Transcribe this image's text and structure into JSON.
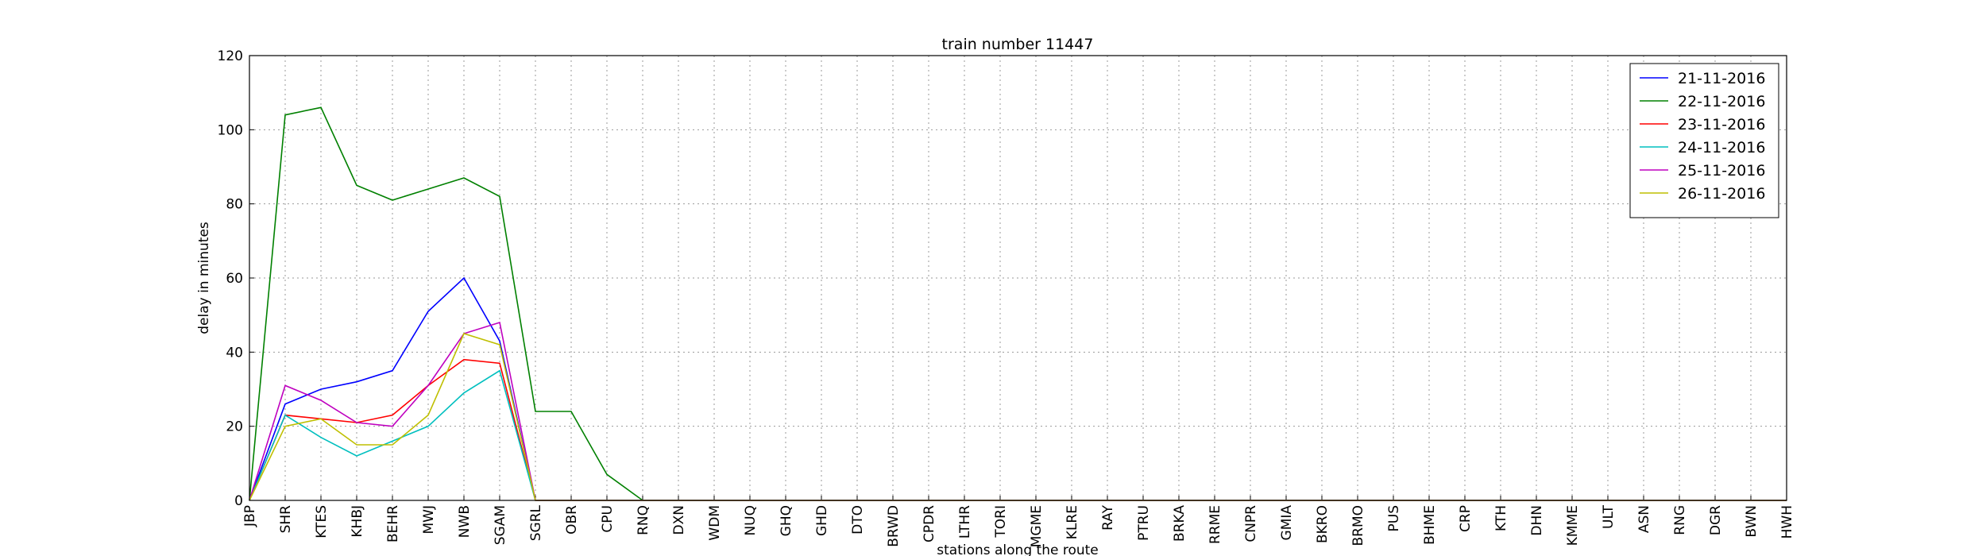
{
  "chart_data": {
    "type": "line",
    "title": "train number 11447",
    "x_label": "stations along the route",
    "y_label": "delay in minutes",
    "categories": [
      "JBP",
      "SHR",
      "KTES",
      "KHBJ",
      "BEHR",
      "MWJ",
      "NWB",
      "SGAM",
      "SGRL",
      "OBR",
      "CPU",
      "RNQ",
      "DXN",
      "WDM",
      "NUQ",
      "GHQ",
      "GHD",
      "DTO",
      "BRWD",
      "CPDR",
      "LTHR",
      "TORI",
      "MGME",
      "KLRE",
      "RAY",
      "PTRU",
      "BRKA",
      "RRME",
      "CNPR",
      "GMIA",
      "BKRO",
      "BRMO",
      "PUS",
      "BHME",
      "CRP",
      "KTH",
      "DHN",
      "KMME",
      "ULT",
      "ASN",
      "RNG",
      "DGR",
      "BWN",
      "HWH"
    ],
    "series": [
      {
        "name": "21-11-2016",
        "color": "#0000ff",
        "values": [
          0,
          26,
          30,
          32,
          35,
          51,
          60,
          43,
          0,
          0,
          0,
          0,
          0,
          0,
          0,
          0,
          0,
          0,
          0,
          0,
          0,
          0,
          0,
          0,
          0,
          0,
          0,
          0,
          0,
          0,
          0,
          0,
          0,
          0,
          0,
          0,
          0,
          0,
          0,
          0,
          0,
          0,
          0,
          0
        ]
      },
      {
        "name": "22-11-2016",
        "color": "#008000",
        "values": [
          0,
          104,
          106,
          85,
          81,
          84,
          87,
          82,
          24,
          24,
          7,
          0,
          0,
          0,
          0,
          0,
          0,
          0,
          0,
          0,
          0,
          0,
          0,
          0,
          0,
          0,
          0,
          0,
          0,
          0,
          0,
          0,
          0,
          0,
          0,
          0,
          0,
          0,
          0,
          0,
          0,
          0,
          0,
          0
        ]
      },
      {
        "name": "23-11-2016",
        "color": "#ff0000",
        "values": [
          0,
          23,
          22,
          21,
          23,
          31,
          38,
          37,
          0,
          0,
          0,
          0,
          0,
          0,
          0,
          0,
          0,
          0,
          0,
          0,
          0,
          0,
          0,
          0,
          0,
          0,
          0,
          0,
          0,
          0,
          0,
          0,
          0,
          0,
          0,
          0,
          0,
          0,
          0,
          0,
          0,
          0,
          0,
          0
        ]
      },
      {
        "name": "24-11-2016",
        "color": "#00bfbf",
        "values": [
          0,
          23,
          17,
          12,
          16,
          20,
          29,
          35,
          0,
          0,
          0,
          0,
          0,
          0,
          0,
          0,
          0,
          0,
          0,
          0,
          0,
          0,
          0,
          0,
          0,
          0,
          0,
          0,
          0,
          0,
          0,
          0,
          0,
          0,
          0,
          0,
          0,
          0,
          0,
          0,
          0,
          0,
          0,
          0
        ]
      },
      {
        "name": "25-11-2016",
        "color": "#bf00bf",
        "values": [
          0,
          31,
          27,
          21,
          20,
          31,
          45,
          48,
          0,
          0,
          0,
          0,
          0,
          0,
          0,
          0,
          0,
          0,
          0,
          0,
          0,
          0,
          0,
          0,
          0,
          0,
          0,
          0,
          0,
          0,
          0,
          0,
          0,
          0,
          0,
          0,
          0,
          0,
          0,
          0,
          0,
          0,
          0,
          0
        ]
      },
      {
        "name": "26-11-2016",
        "color": "#bfbf00",
        "values": [
          0,
          20,
          22,
          15,
          15,
          23,
          45,
          42,
          0,
          0,
          0,
          0,
          0,
          0,
          0,
          0,
          0,
          0,
          0,
          0,
          0,
          0,
          0,
          0,
          0,
          0,
          0,
          0,
          0,
          0,
          0,
          0,
          0,
          0,
          0,
          0,
          0,
          0,
          0,
          0,
          0,
          0,
          0,
          0
        ]
      }
    ],
    "ylim": [
      0,
      120
    ],
    "yticks": [
      0,
      20,
      40,
      60,
      80,
      100,
      120
    ],
    "grid": true,
    "legend": "upper right"
  }
}
